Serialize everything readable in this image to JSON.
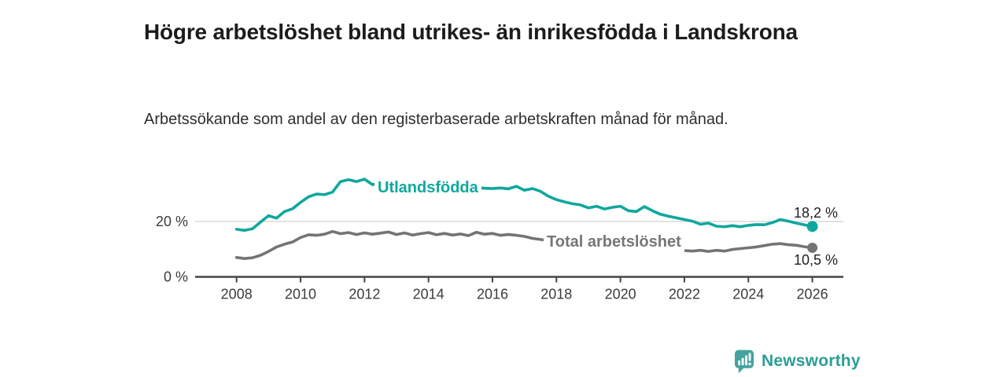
{
  "header": {
    "title": "Högre arbetslöshet bland utrikes- än inrikesfödda i Landskrona",
    "subtitle": "Arbetssökande som andel av den registerbaserade arbetskraften månad för månad."
  },
  "chart_data": {
    "type": "line",
    "title": "Högre arbetslöshet bland utrikes- än inrikesfödda i Landskrona",
    "subtitle": "Arbetssökande som andel av den registerbaserade arbetskraften månad för månad.",
    "unit": "%",
    "x_start": 2008,
    "x_step_years": 0.25,
    "x_end": 2026,
    "x_tick_years": [
      2008,
      2010,
      2012,
      2014,
      2016,
      2018,
      2020,
      2022,
      2024,
      2026
    ],
    "x_tick_labels": [
      "2008",
      "2010",
      "2012",
      "2014",
      "2016",
      "2018",
      "2020",
      "2022",
      "2024",
      "2026"
    ],
    "y_ticks": [
      {
        "value": 0,
        "label": "0 %"
      },
      {
        "value": 20,
        "label": "20 %"
      }
    ],
    "gridlines_at": [
      20
    ],
    "ylim": [
      0,
      40
    ],
    "legend_position": "inline-labels-on-lines",
    "series": [
      {
        "name": "Utlandsfödda",
        "color": "#0fa79d",
        "end_label": "18,2 %",
        "end_value": 18.2,
        "values": [
          17.2,
          16.8,
          17.4,
          19.8,
          22.1,
          21.2,
          23.6,
          24.6,
          26.9,
          28.9,
          29.9,
          29.7,
          30.6,
          34.4,
          35.1,
          34.4,
          35.3,
          33.3,
          34.1,
          33.9,
          33.6,
          33.9,
          33.4,
          33.1,
          33.3,
          32.9,
          32.6,
          32.8,
          32.4,
          32.1,
          32.3,
          32.0,
          31.9,
          32.1,
          31.8,
          32.7,
          31.3,
          31.9,
          30.9,
          29.1,
          27.9,
          27.1,
          26.4,
          26.0,
          24.9,
          25.5,
          24.5,
          25.1,
          25.5,
          23.9,
          23.6,
          25.4,
          23.9,
          22.6,
          21.9,
          21.3,
          20.7,
          20.1,
          19.0,
          19.4,
          18.3,
          18.1,
          18.5,
          18.1,
          18.6,
          18.9,
          18.8,
          19.6,
          20.7,
          20.1,
          19.4,
          18.8,
          18.2
        ]
      },
      {
        "name": "Total arbetslöshet",
        "color": "#747477",
        "end_label": "10,5 %",
        "end_value": 10.5,
        "values": [
          7.0,
          6.6,
          6.9,
          7.8,
          9.2,
          10.8,
          11.8,
          12.6,
          14.2,
          15.2,
          15.0,
          15.4,
          16.4,
          15.6,
          16.0,
          15.3,
          15.9,
          15.4,
          15.8,
          16.2,
          15.3,
          15.9,
          15.1,
          15.6,
          16.0,
          15.2,
          15.7,
          15.1,
          15.5,
          14.9,
          16.1,
          15.4,
          15.7,
          15.0,
          15.3,
          15.0,
          14.6,
          13.9,
          13.5,
          13.1,
          12.7,
          12.3,
          12.0,
          11.7,
          11.4,
          11.1,
          10.9,
          10.8,
          11.1,
          11.8,
          12.1,
          11.7,
          11.2,
          10.7,
          10.2,
          9.8,
          9.5,
          9.3,
          9.6,
          9.2,
          9.6,
          9.3,
          9.9,
          10.2,
          10.5,
          10.8,
          11.3,
          11.8,
          12.0,
          11.6,
          11.4,
          10.9,
          10.5
        ]
      }
    ]
  },
  "colors": {
    "accent_teal": "#0fa79d",
    "series_gray": "#747477",
    "axis": "#454545",
    "gridline": "#d9d9d9",
    "tick_text": "#3c3c3c",
    "title_text": "#1c1c1c",
    "logo_icon": "#44a39c",
    "logo_text": "#2b9e97"
  },
  "footer": {
    "brand": "Newsworthy"
  }
}
